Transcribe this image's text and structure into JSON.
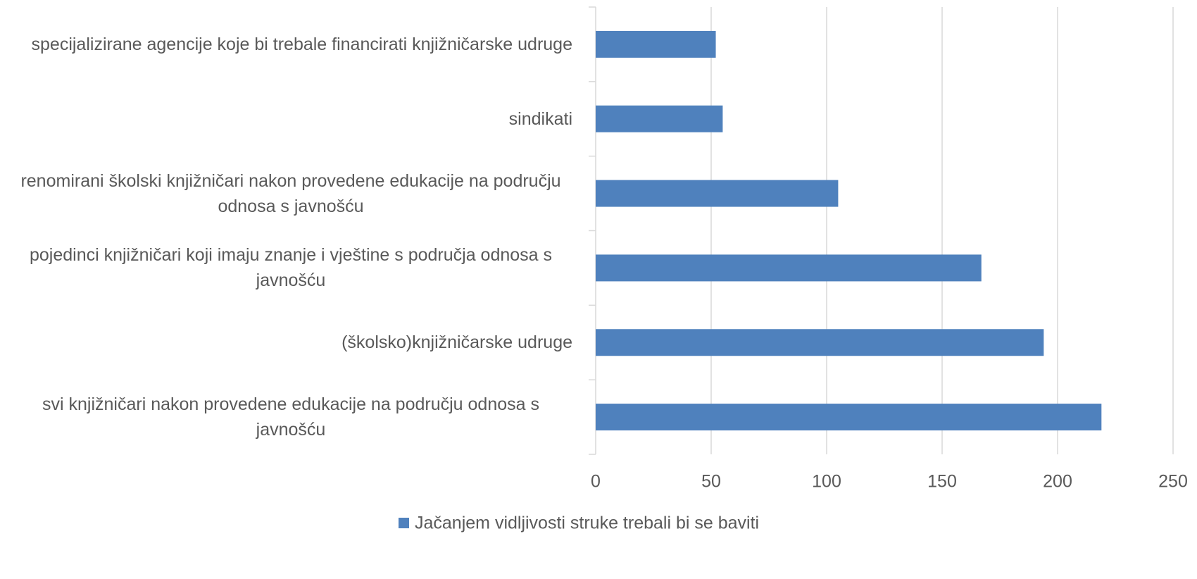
{
  "chart_data": {
    "type": "bar",
    "orientation": "horizontal",
    "categories": [
      "svi knjižničari nakon provedene edukacije na području odnosa s javnošću",
      "(školsko)knjižničarske udruge",
      "pojedinci knjižničari koji imaju znanje i vještine s područja odnosa s javnošću",
      "renomirani školski knjižničari nakon provedene edukacije  na području odnosa s javnošću",
      "sindikati",
      "specijalizirane agencije koje bi trebale financirati knjižničarske udruge"
    ],
    "series": [
      {
        "name": "Jačanjem vidljivosti struke trebali bi se baviti",
        "color": "#4f81bd",
        "values": [
          219,
          194,
          167,
          105,
          55,
          52
        ]
      }
    ],
    "xlim": [
      0,
      250
    ],
    "xticks": [
      0,
      50,
      100,
      150,
      200,
      250
    ],
    "grid": true,
    "legend": "bottom"
  }
}
